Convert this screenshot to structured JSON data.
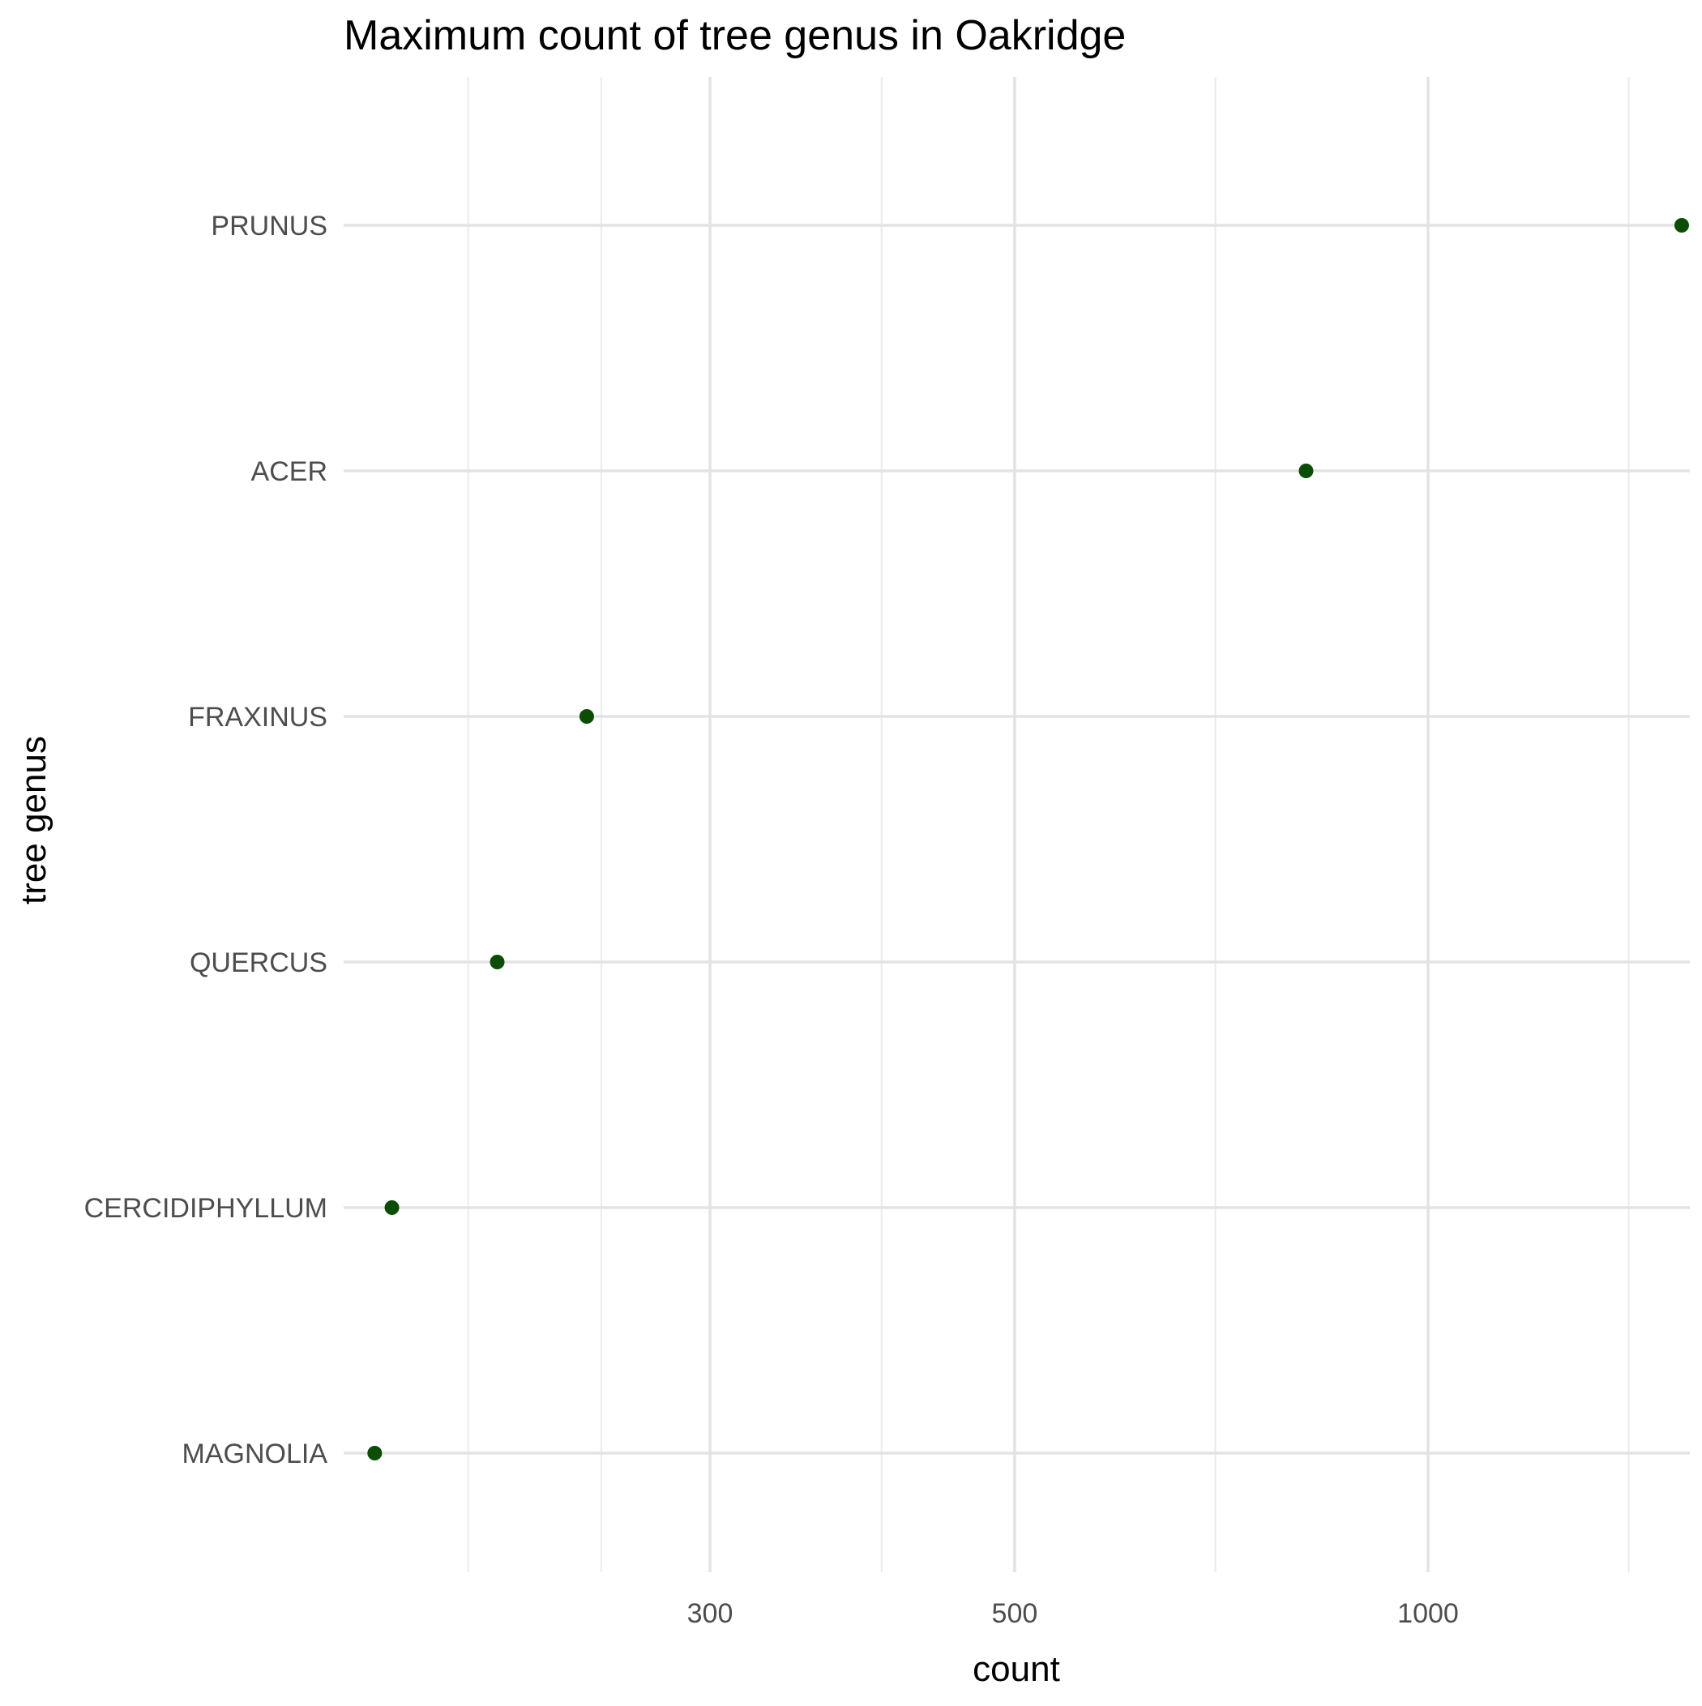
{
  "chart_data": {
    "type": "scatter",
    "title": "Maximum count of tree genus in Oakridge",
    "xlabel": "count",
    "ylabel": "tree genus",
    "x_scale": "log10",
    "x_ticks": [
      300,
      500,
      1000
    ],
    "x_tick_labels": [
      "300",
      "500",
      "1000"
    ],
    "categories": [
      "PRUNUS",
      "ACER",
      "FRAXINUS",
      "QUERCUS",
      "CERCIDIPHYLLUM",
      "MAGNOLIA"
    ],
    "values": [
      1530,
      815,
      244,
      210,
      176,
      171
    ],
    "grid": true,
    "legend": "none",
    "point_color": "#0b4d05"
  }
}
